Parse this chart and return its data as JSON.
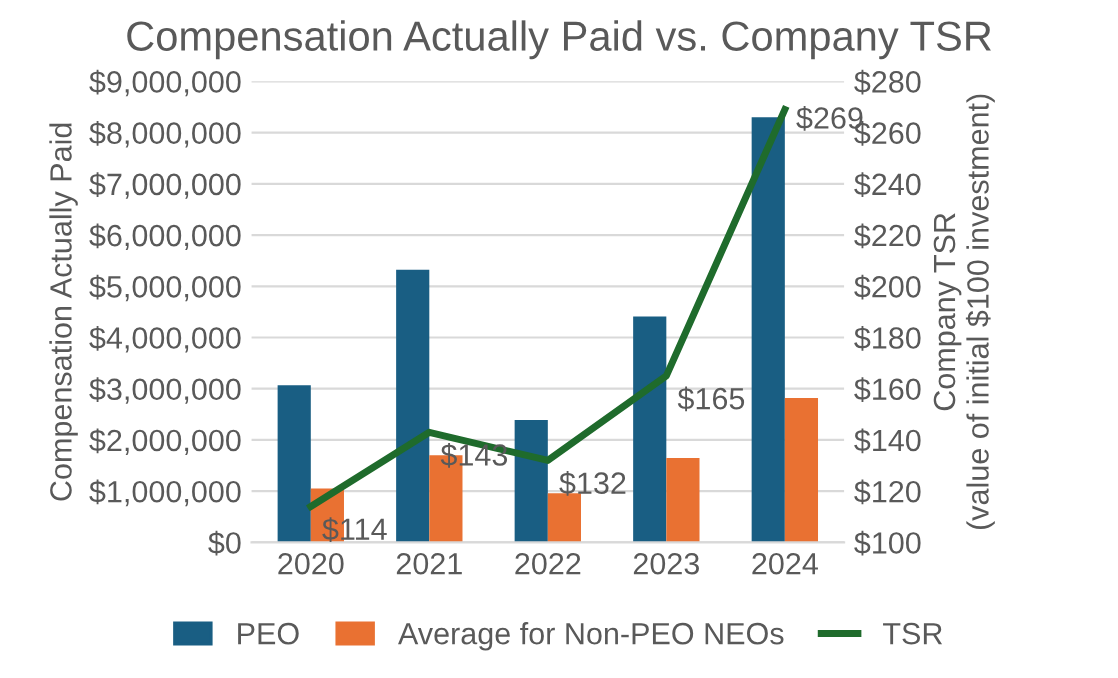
{
  "chart_data": {
    "type": "bar",
    "title": "Compensation Actually Paid vs. Company TSR",
    "ylabel": "Compensation Actually Paid",
    "y2label": "Company TSR\n(value of initial $100 investment)",
    "categories": [
      "2020",
      "2021",
      "2022",
      "2023",
      "2024"
    ],
    "series": [
      {
        "name": "PEO",
        "color": "#195e83",
        "values": [
          3070000,
          5320000,
          2390000,
          4410000,
          8300000
        ]
      },
      {
        "name": "Average for Non-PEO NEOs",
        "color": "#e97132",
        "values": [
          1050000,
          1700000,
          960000,
          1650000,
          2820000
        ]
      },
      {
        "name": "TSR",
        "type": "line",
        "axis": "y2",
        "color": "#1f6b2c",
        "values": [
          114,
          143,
          132,
          165,
          269
        ],
        "value_labels": [
          "$114",
          "$143",
          "$132",
          "$165",
          "$269"
        ]
      }
    ],
    "ylim": [
      0,
      9000000
    ],
    "yticks": [
      {
        "value": 0,
        "label": "$0"
      },
      {
        "value": 1000000,
        "label": "$1,000,000"
      },
      {
        "value": 2000000,
        "label": "$2,000,000"
      },
      {
        "value": 3000000,
        "label": "$3,000,000"
      },
      {
        "value": 4000000,
        "label": "$4,000,000"
      },
      {
        "value": 5000000,
        "label": "$5,000,000"
      },
      {
        "value": 6000000,
        "label": "$6,000,000"
      },
      {
        "value": 7000000,
        "label": "$7,000,000"
      },
      {
        "value": 8000000,
        "label": "$8,000,000"
      },
      {
        "value": 9000000,
        "label": "$9,000,000"
      }
    ],
    "y2lim": [
      100,
      280
    ],
    "y2ticks": [
      {
        "value": 100,
        "label": "$100"
      },
      {
        "value": 120,
        "label": "$120"
      },
      {
        "value": 140,
        "label": "$140"
      },
      {
        "value": 160,
        "label": "$160"
      },
      {
        "value": 180,
        "label": "$180"
      },
      {
        "value": 200,
        "label": "$200"
      },
      {
        "value": 220,
        "label": "$220"
      },
      {
        "value": 240,
        "label": "$240"
      },
      {
        "value": 260,
        "label": "$260"
      },
      {
        "value": 280,
        "label": "$280"
      }
    ],
    "grid": "y",
    "legend": "bottom",
    "marker": "none",
    "line_style": "solid"
  }
}
